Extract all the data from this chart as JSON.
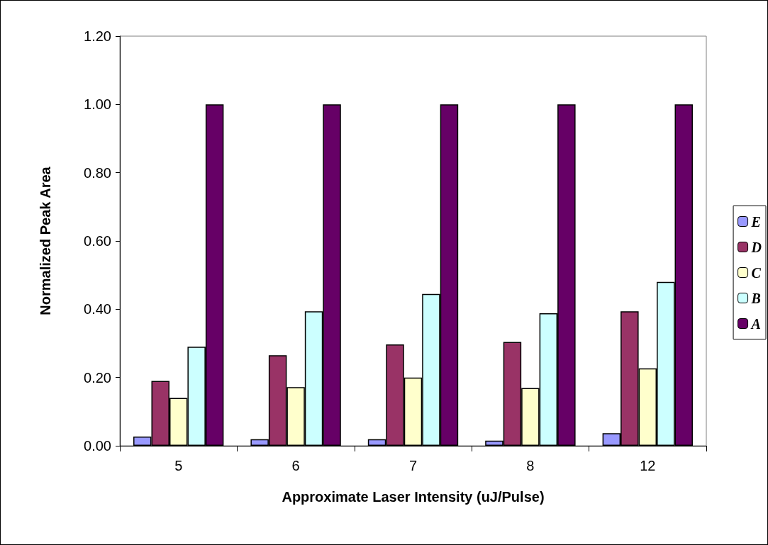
{
  "chart_data": {
    "type": "bar",
    "xlabel": "Approximate Laser Intensity (uJ/Pulse)",
    "ylabel": "Normalized Peak Area",
    "categories": [
      "5",
      "6",
      "7",
      "8",
      "12"
    ],
    "series": [
      {
        "name": "E",
        "color": "#9999ff",
        "values": [
          0.027,
          0.019,
          0.019,
          0.015,
          0.037
        ]
      },
      {
        "name": "D",
        "color": "#993366",
        "values": [
          0.19,
          0.265,
          0.297,
          0.304,
          0.394
        ]
      },
      {
        "name": "C",
        "color": "#ffffcc",
        "values": [
          0.14,
          0.172,
          0.2,
          0.169,
          0.227
        ]
      },
      {
        "name": "B",
        "color": "#ccffff",
        "values": [
          0.29,
          0.394,
          0.445,
          0.388,
          0.48
        ]
      },
      {
        "name": "A",
        "color": "#660066",
        "values": [
          1,
          1,
          1,
          1,
          1
        ]
      }
    ],
    "ylim": [
      0,
      1.2
    ],
    "yticks": [
      {
        "value": 0,
        "label": "0.00"
      },
      {
        "value": 0.2,
        "label": "0.20"
      },
      {
        "value": 0.4,
        "label": "0.40"
      },
      {
        "value": 0.6,
        "label": "0.60"
      },
      {
        "value": 0.8,
        "label": "0.80"
      },
      {
        "value": 1,
        "label": "1.00"
      },
      {
        "value": 1.2,
        "label": "1.20"
      }
    ],
    "grid": false,
    "legend": "right"
  }
}
